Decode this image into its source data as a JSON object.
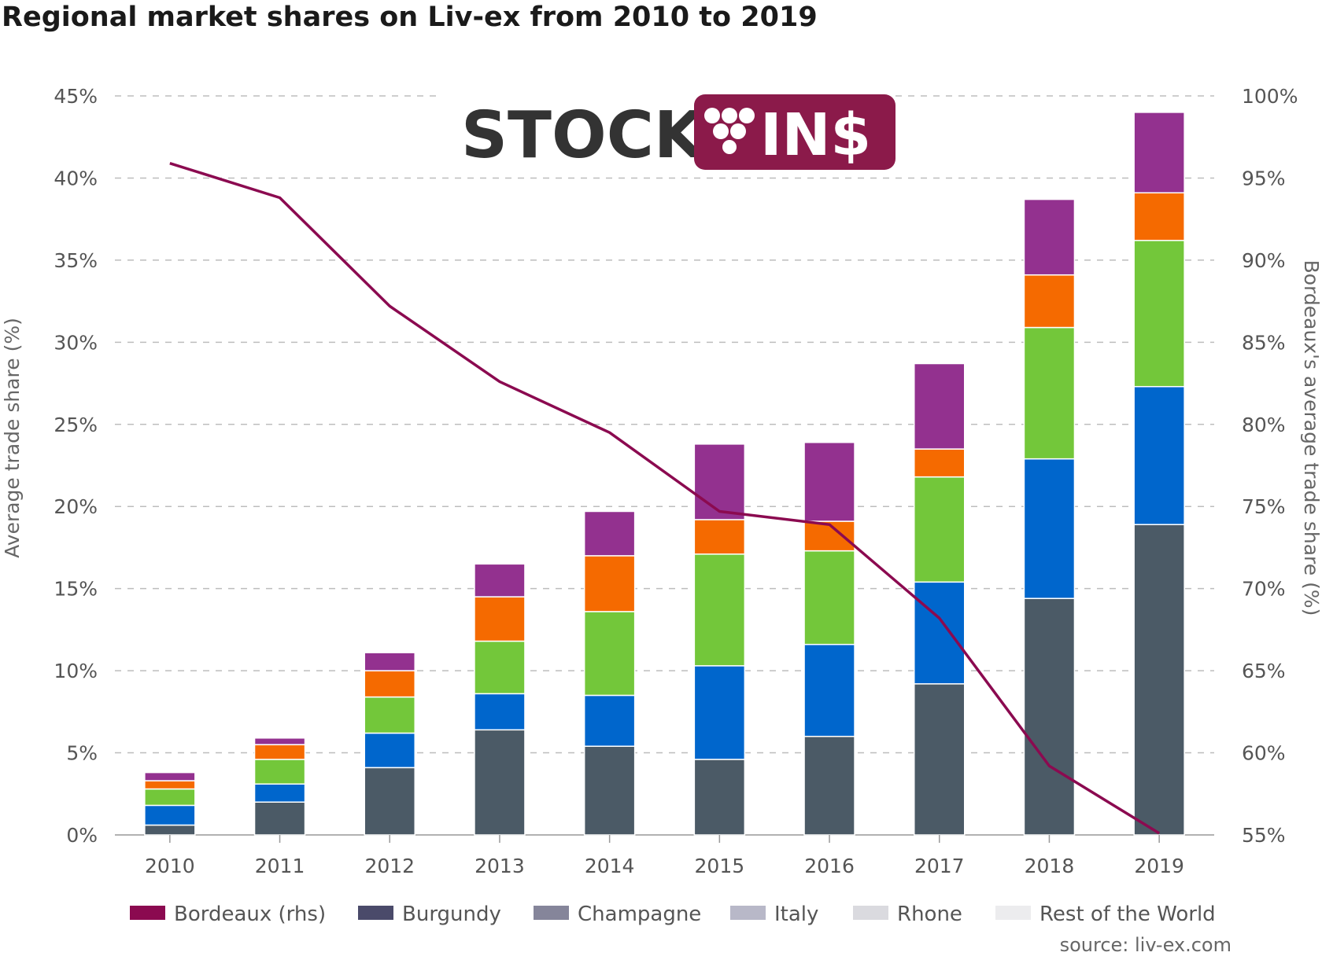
{
  "title": "Regional market shares on Liv-ex from 2010 to 2019",
  "source": "source: liv-ex.com",
  "logo": {
    "left": "STOCK",
    "right": "IN$",
    "right_icon": "grapes-icon",
    "color": "#8b1a4a"
  },
  "chart_data": {
    "type": "bar",
    "stacked": true,
    "categories": [
      "2010",
      "2011",
      "2012",
      "2013",
      "2014",
      "2015",
      "2016",
      "2017",
      "2018",
      "2019"
    ],
    "ylabel": "Average trade share (%)",
    "y2label": "Bordeaux's average trade share (%)",
    "ylim": [
      0,
      45
    ],
    "y2lim": [
      55,
      100
    ],
    "yticks": [
      "0%",
      "5%",
      "10%",
      "15%",
      "20%",
      "25%",
      "30%",
      "35%",
      "40%",
      "45%"
    ],
    "y2ticks": [
      "55%",
      "60%",
      "65%",
      "70%",
      "75%",
      "80%",
      "85%",
      "90%",
      "95%",
      "100%"
    ],
    "grid": true,
    "legend_position": "bottom",
    "series": [
      {
        "name": "Burgundy",
        "color": "#4b5a66",
        "values": [
          0.6,
          2.0,
          4.1,
          6.4,
          5.4,
          4.6,
          6.0,
          9.2,
          14.4,
          18.9
        ]
      },
      {
        "name": "Champagne",
        "color": "#0066cc",
        "values": [
          1.2,
          1.1,
          2.1,
          2.2,
          3.1,
          5.7,
          5.6,
          6.2,
          8.5,
          8.4
        ]
      },
      {
        "name": "Italy",
        "color": "#73c73a",
        "values": [
          1.0,
          1.5,
          2.2,
          3.2,
          5.1,
          6.8,
          5.7,
          6.4,
          8.0,
          8.9
        ]
      },
      {
        "name": "Rhone",
        "color": "#f56a00",
        "values": [
          0.5,
          0.9,
          1.6,
          2.7,
          3.4,
          2.1,
          1.8,
          1.7,
          3.2,
          2.9
        ]
      },
      {
        "name": "Rest of the World",
        "color": "#93318f",
        "values": [
          0.5,
          0.4,
          1.1,
          2.0,
          2.7,
          4.6,
          4.8,
          5.2,
          4.6,
          4.9
        ]
      },
      {
        "name": "Bordeaux (rhs)",
        "color": "#8b0a50",
        "type": "line",
        "axis": "right",
        "values": [
          95.9,
          93.8,
          87.2,
          82.6,
          79.5,
          74.7,
          73.9,
          68.2,
          59.2,
          55.1
        ]
      }
    ],
    "legend": [
      {
        "label": "Bordeaux (rhs)",
        "color": "#8b0a50"
      },
      {
        "label": "Burgundy",
        "color": "#4a4a6a"
      },
      {
        "label": "Champagne",
        "color": "#85859a"
      },
      {
        "label": "Italy",
        "color": "#b8b8c8"
      },
      {
        "label": "Rhone",
        "color": "#dadadf"
      },
      {
        "label": "Rest of the World",
        "color": "#ececee"
      }
    ]
  }
}
